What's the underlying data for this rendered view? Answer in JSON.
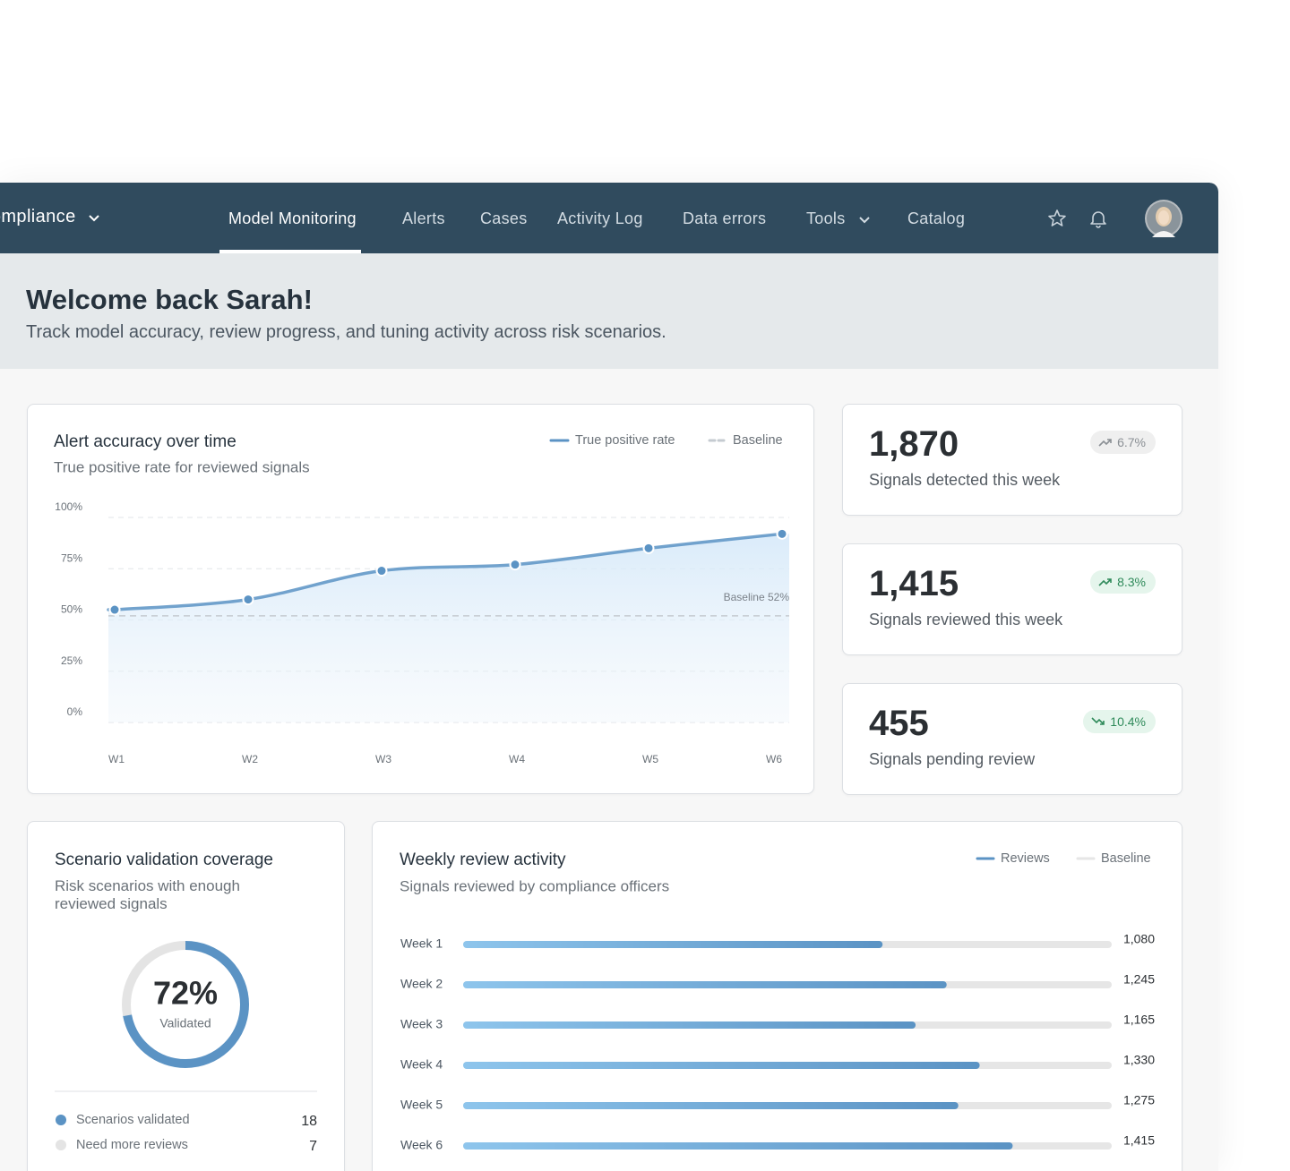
{
  "nav": {
    "brand": "Compliance",
    "items": [
      "Model Monitoring",
      "Alerts",
      "Cases",
      "Activity Log",
      "Data errors",
      "Tools",
      "Catalog"
    ]
  },
  "header": {
    "title": "Welcome back Sarah!",
    "subtitle": "Track model accuracy, review progress, and tuning activity across risk scenarios."
  },
  "kpis": [
    {
      "value": "1,870",
      "label": "Signals detected this week",
      "change": "6.7%",
      "trend": "up",
      "tone": "neutral"
    },
    {
      "value": "1,415",
      "label": "Signals reviewed this week",
      "change": "8.3%",
      "trend": "up",
      "tone": "positive"
    },
    {
      "value": "455",
      "label": "Signals pending review",
      "change": "10.4%",
      "trend": "down",
      "tone": "positive"
    }
  ],
  "chart_data": [
    {
      "type": "line",
      "title": "Alert accuracy over time",
      "subtitle": "True positive rate for reviewed signals",
      "categories": [
        "W1",
        "W2",
        "W3",
        "W4",
        "W5",
        "W6"
      ],
      "series": [
        {
          "name": "True positive rate",
          "color": "#5b93c4",
          "values": [
            55,
            60,
            74,
            77,
            85,
            92
          ]
        }
      ],
      "baseline": {
        "name": "Baseline",
        "value": 52,
        "label": "Baseline 52%",
        "color": "#c5cbd1"
      },
      "ylim": [
        0,
        100
      ],
      "yticks": [
        {
          "value": 0,
          "label": "0%"
        },
        {
          "value": 25,
          "label": "25%"
        },
        {
          "value": 50,
          "label": "50%"
        },
        {
          "value": 75,
          "label": "75%"
        },
        {
          "value": 100,
          "label": "100%"
        }
      ],
      "grid": true
    },
    {
      "type": "donut",
      "title": "Scenario validation coverage",
      "subtitle": "Risk scenarios with enough reviewed signals",
      "categories": [
        "Scenarios validated",
        "Need more reviews"
      ],
      "values": [
        18,
        7
      ],
      "colors": [
        "#5b93c4",
        "#e4e4e4"
      ],
      "center_label": "72%",
      "center_caption": "Validated"
    },
    {
      "type": "bar",
      "orientation": "horizontal",
      "title": "Weekly review activity",
      "subtitle": "Signals reviewed by compliance officers",
      "categories": [
        "Week 1",
        "Week 2",
        "Week 3",
        "Week 4",
        "Week 5",
        "Week 6"
      ],
      "series": [
        {
          "name": "Reviews",
          "color": "#5b93c4",
          "values": [
            1080,
            1245,
            1165,
            1330,
            1275,
            1415
          ],
          "value_labels": [
            "1,080",
            "1,245",
            "1,165",
            "1,330",
            "1,275",
            "1,415"
          ]
        }
      ],
      "track": {
        "name": "Baseline",
        "color": "#e6e6e6"
      },
      "xlim": [
        0,
        1670
      ]
    }
  ]
}
